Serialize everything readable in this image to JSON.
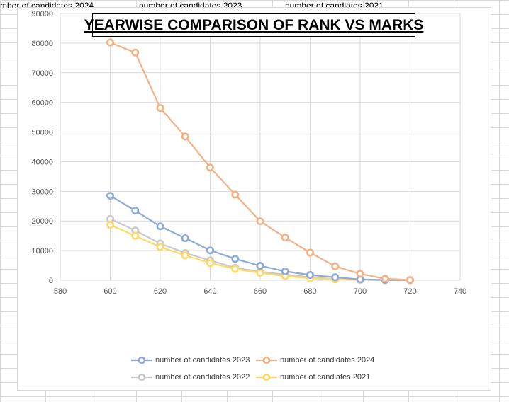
{
  "sheet": {
    "headers": [
      {
        "text": "mber of candidates 2024"
      },
      {
        "text": "number of candidates 2023"
      },
      {
        "text": "number of candiates 2021"
      }
    ]
  },
  "chart_data": {
    "type": "line",
    "title": "YEARWISE COMPARISON OF RANK VS MARKS",
    "xlabel": "",
    "ylabel": "",
    "xlim": [
      580,
      740
    ],
    "ylim": [
      0,
      90000
    ],
    "x_ticks": [
      580,
      600,
      620,
      640,
      660,
      680,
      700,
      720,
      740
    ],
    "y_ticks": [
      0,
      10000,
      20000,
      30000,
      40000,
      50000,
      60000,
      70000,
      80000,
      90000
    ],
    "grid": "vertical and horizontal major gridlines",
    "legend_position": "bottom",
    "x": [
      600,
      610,
      620,
      630,
      640,
      650,
      660,
      670,
      680,
      690,
      700,
      710,
      720
    ],
    "series": [
      {
        "name": "number of candidates 2023",
        "color": "#8eaadb",
        "values": [
          28500,
          23500,
          18200,
          14200,
          10100,
          7200,
          4900,
          3000,
          1800,
          1000,
          300,
          100,
          50
        ]
      },
      {
        "name": "number of candidates 2024",
        "color": "#f4b183",
        "values": [
          80200,
          76800,
          58100,
          48500,
          38000,
          28900,
          19900,
          14400,
          9300,
          4700,
          2200,
          500,
          100
        ]
      },
      {
        "name": "number of candidates 2022",
        "color": "#c9c9c9",
        "values": [
          20700,
          16800,
          12400,
          9200,
          6700,
          4200,
          2900,
          1900,
          1000,
          400,
          150,
          50,
          20
        ]
      },
      {
        "name": "number of candiates 2021",
        "color": "#ffd966",
        "values": [
          18700,
          15000,
          11200,
          8400,
          5800,
          3800,
          2500,
          1400,
          700,
          300,
          100,
          40,
          10
        ]
      }
    ]
  }
}
